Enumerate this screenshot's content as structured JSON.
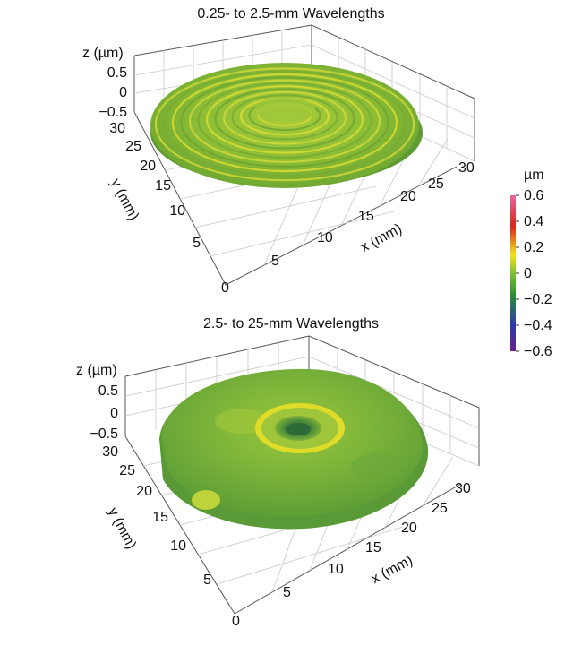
{
  "chart_data": [
    {
      "type": "surface3d",
      "title": "0.25- to 2.5-mm Wavelengths",
      "xlabel": "x (mm)",
      "ylabel": "y (mm)",
      "zlabel": "z (µm)",
      "x_ticks": [
        "0",
        "5",
        "10",
        "15",
        "20",
        "25",
        "30"
      ],
      "y_ticks": [
        "5",
        "10",
        "15",
        "20",
        "25",
        "30"
      ],
      "z_ticks": [
        "0.5",
        "0",
        "−0.5"
      ],
      "xlim": [
        0,
        30
      ],
      "ylim": [
        0,
        30
      ],
      "zlim": [
        -0.5,
        0.5
      ],
      "surface": "ripple",
      "grid": true
    },
    {
      "type": "surface3d",
      "title": "2.5- to 25-mm Wavelengths",
      "xlabel": "x (mm)",
      "ylabel": "y (mm)",
      "zlabel": "z (µm)",
      "x_ticks": [
        "0",
        "5",
        "10",
        "15",
        "20",
        "25",
        "30"
      ],
      "y_ticks": [
        "5",
        "10",
        "15",
        "20",
        "25",
        "30"
      ],
      "z_ticks": [
        "0.5",
        "0",
        "−0.5"
      ],
      "xlim": [
        0,
        30
      ],
      "ylim": [
        0,
        30
      ],
      "zlim": [
        -0.5,
        0.5
      ],
      "surface": "smooth",
      "grid": true
    }
  ],
  "colorbar": {
    "unit": "µm",
    "ticks": [
      "0.6",
      "0.4",
      "0.2",
      "0",
      "−0.2",
      "−0.4",
      "−0.6"
    ],
    "range": [
      -0.6,
      0.6
    ],
    "colors": [
      "#6a1f8f",
      "#2b3aa8",
      "#2a8a3a",
      "#7fc02f",
      "#f2e21c",
      "#d8261c",
      "#e4689b"
    ]
  }
}
